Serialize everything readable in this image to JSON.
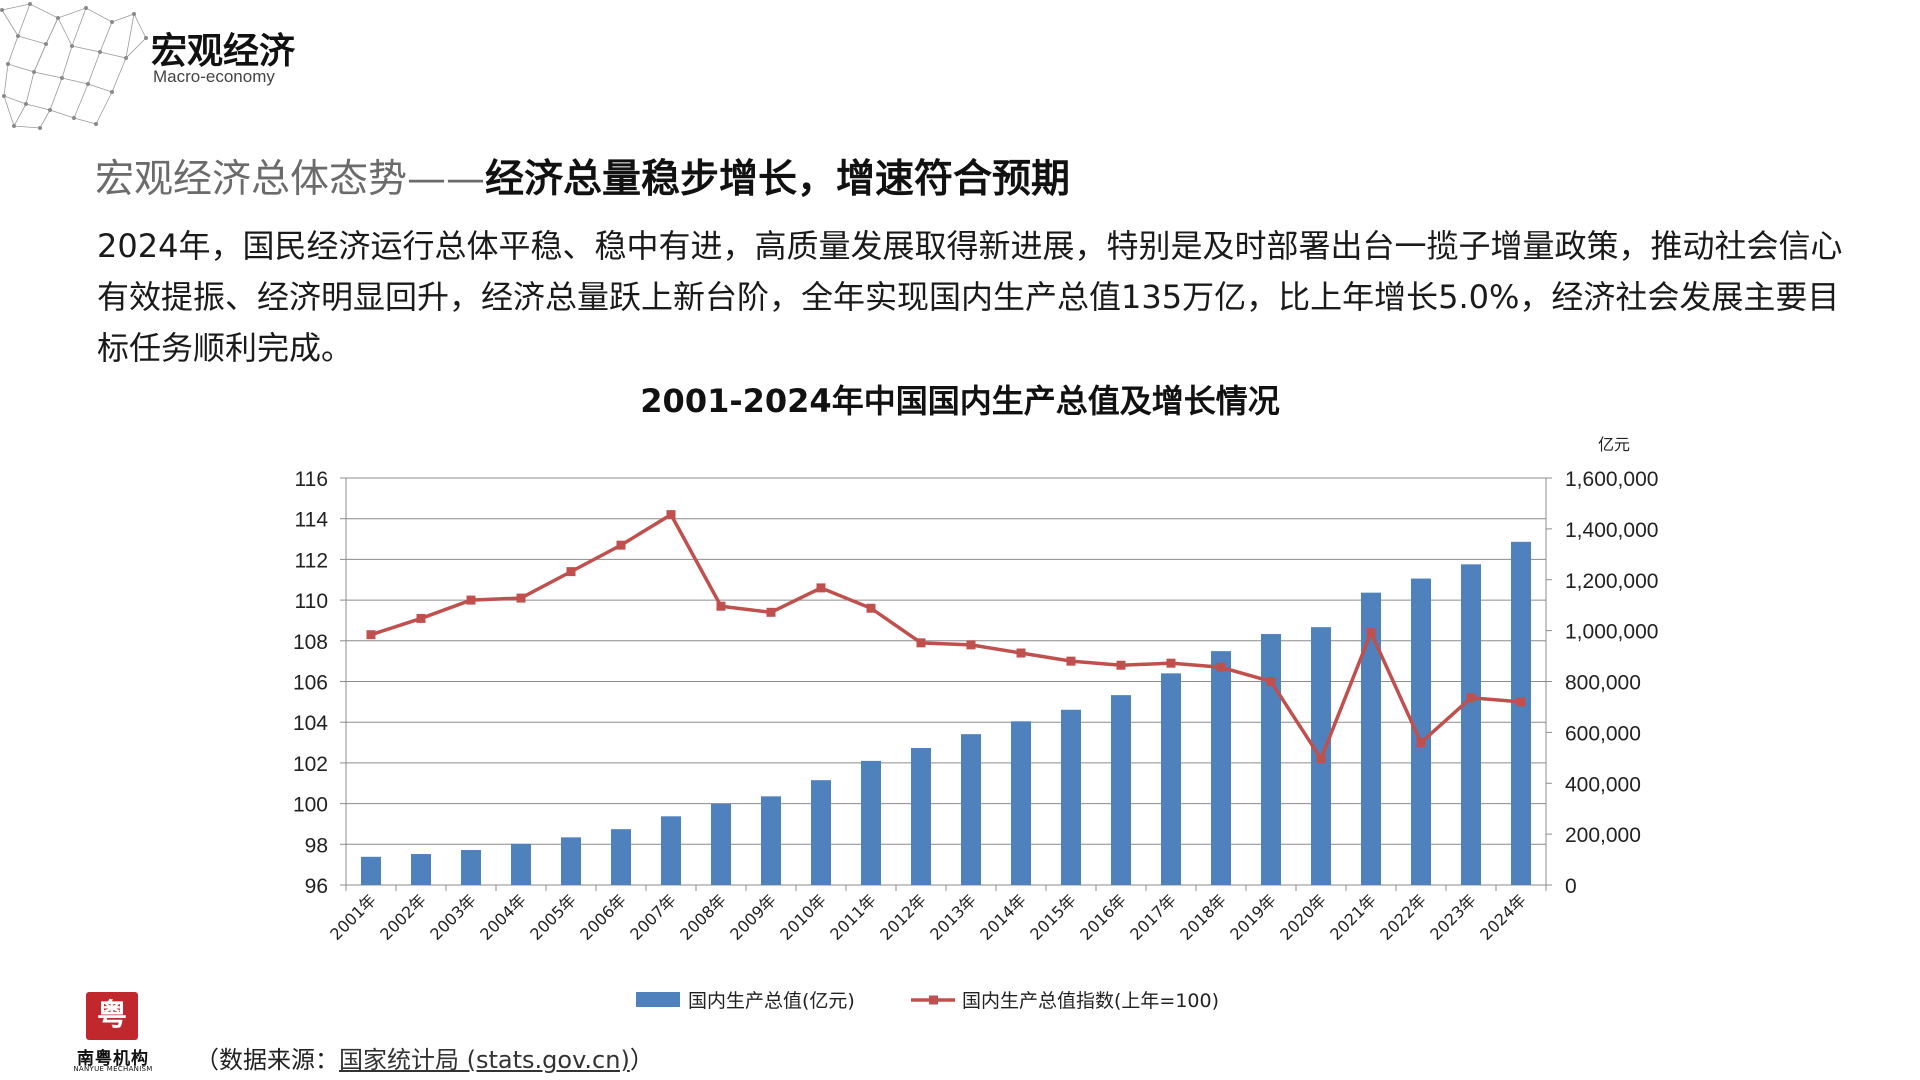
{
  "header": {
    "title": "宏观经济",
    "subtitle": "Macro-economy"
  },
  "section": {
    "lead": "宏观经济总体态势",
    "dash": "——",
    "headline": "经济总量稳步增长，增速符合预期"
  },
  "paragraph": "2024年，国民经济运行总体平稳、稳中有进，高质量发展取得新进展，特别是及时部署出台一揽子增量政策，推动社会信心有效提振、经济明显回升，经济总量跃上新台阶，全年实现国内生产总值135万亿，比上年增长5.0%，经济社会发展主要目标任务顺利完成。",
  "chart_data": {
    "type": "bar+line",
    "title": "2001-2024年中国国内生产总值及增长情况",
    "categories": [
      "2001年",
      "2002年",
      "2003年",
      "2004年",
      "2005年",
      "2006年",
      "2007年",
      "2008年",
      "2009年",
      "2010年",
      "2011年",
      "2012年",
      "2013年",
      "2014年",
      "2015年",
      "2016年",
      "2017年",
      "2018年",
      "2019年",
      "2020年",
      "2021年",
      "2022年",
      "2023年",
      "2024年"
    ],
    "series": [
      {
        "name": "国内生产总值(亿元)",
        "kind": "bar",
        "axis": "right",
        "color": "#4f81bd",
        "values": [
          110863,
          121717,
          137422,
          161840,
          187319,
          219439,
          270092,
          319245,
          348518,
          412119,
          487940,
          538580,
          592963,
          643563,
          688858,
          746395,
          832036,
          919281,
          986515,
          1013567,
          1149237,
          1204724,
          1260582,
          1349084
        ]
      },
      {
        "name": "国内生产总值指数(上年=100)",
        "kind": "line",
        "axis": "left",
        "color": "#c0504d",
        "values": [
          108.3,
          109.1,
          110.0,
          110.1,
          111.4,
          112.7,
          114.2,
          109.7,
          109.4,
          110.6,
          109.6,
          107.9,
          107.8,
          107.4,
          107.0,
          106.8,
          106.9,
          106.7,
          106.0,
          102.2,
          108.4,
          103.0,
          105.2,
          105.0
        ]
      }
    ],
    "left_axis": {
      "min": 96,
      "max": 116,
      "ticks": [
        "96",
        "98",
        "100",
        "102",
        "104",
        "106",
        "108",
        "110",
        "112",
        "114",
        "116"
      ]
    },
    "right_axis": {
      "min": 0,
      "max": 1600000,
      "unit": "亿元",
      "ticks": [
        "0",
        "200,000",
        "400,000",
        "600,000",
        "800,000",
        "1,000,000",
        "1,200,000",
        "1,400,000",
        "1,600,000"
      ]
    },
    "grid": true,
    "legend_position": "bottom"
  },
  "logo": {
    "glyph": "粤",
    "name": "南粤机构",
    "en": "NANYUE MECHANISM"
  },
  "source": {
    "prefix": "（数据来源：",
    "link": "国家统计局 (stats.gov.cn)",
    "suffix": "）"
  }
}
